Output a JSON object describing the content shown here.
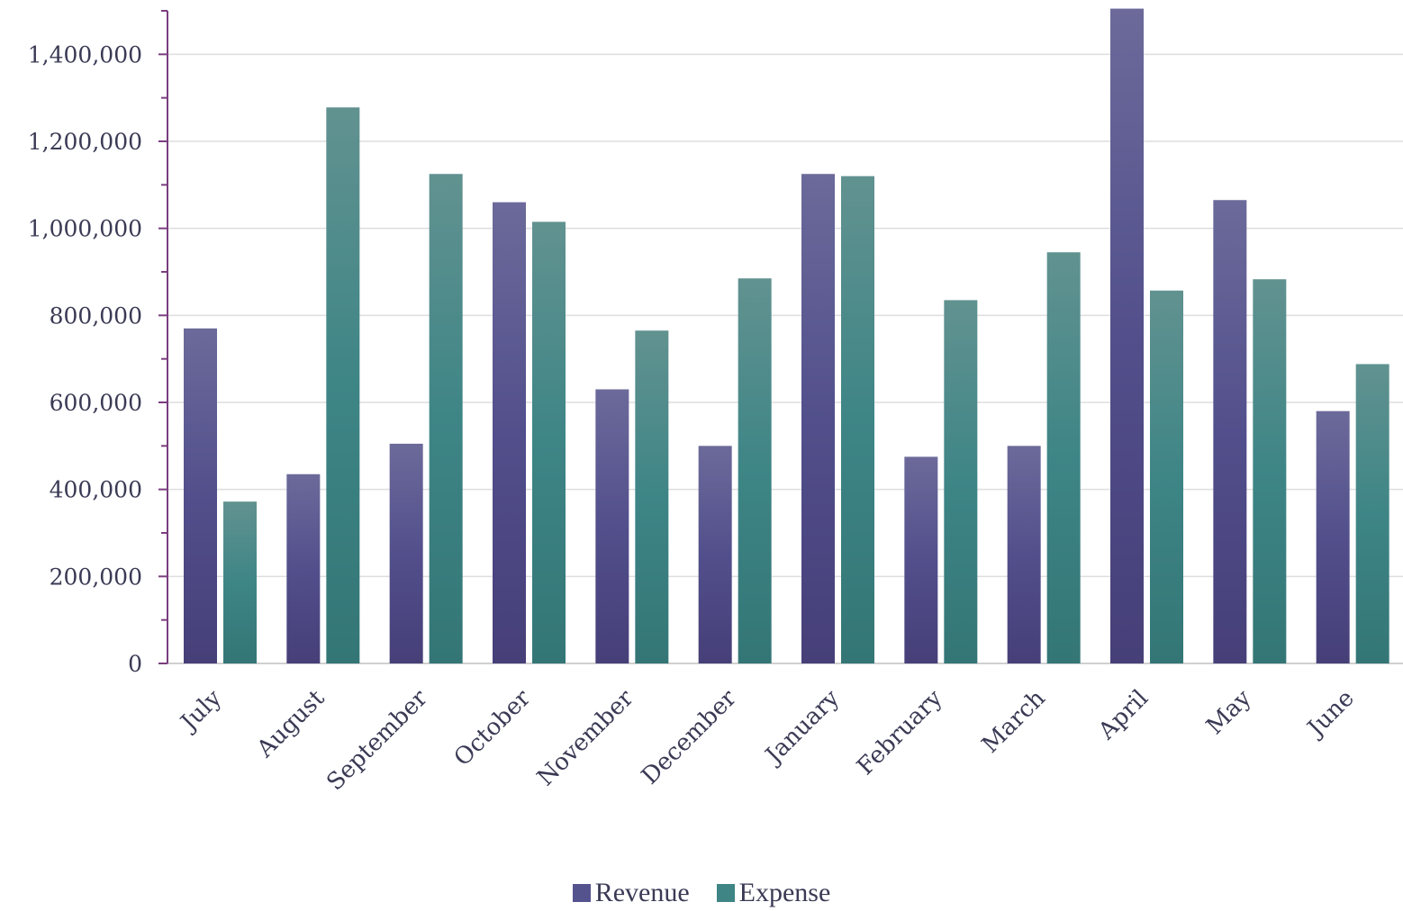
{
  "chart_data": {
    "type": "bar",
    "title": "",
    "xlabel": "",
    "ylabel": "",
    "categories": [
      "July",
      "August",
      "September",
      "October",
      "November",
      "December",
      "January",
      "February",
      "March",
      "April",
      "May",
      "June"
    ],
    "series": [
      {
        "name": "Revenue",
        "color": "#4e4a88",
        "values": [
          770000,
          435000,
          505000,
          1060000,
          630000,
          500000,
          1125000,
          475000,
          500000,
          1505000,
          1065000,
          580000
        ]
      },
      {
        "name": "Expense",
        "color": "#3f8585",
        "values": [
          372000,
          1278000,
          1125000,
          1015000,
          765000,
          885000,
          1120000,
          835000,
          945000,
          857000,
          883000,
          688000
        ]
      }
    ],
    "ylim": [
      0,
      1500000
    ],
    "yticks": [
      0,
      200000,
      400000,
      600000,
      800000,
      1000000,
      1200000,
      1400000
    ],
    "ytick_labels": [
      "0",
      "200,000",
      "400,000",
      "600,000",
      "800,000",
      "1,000,000",
      "1,200,000",
      "1,400,000"
    ],
    "grid": true,
    "legend_position": "bottom-center"
  }
}
